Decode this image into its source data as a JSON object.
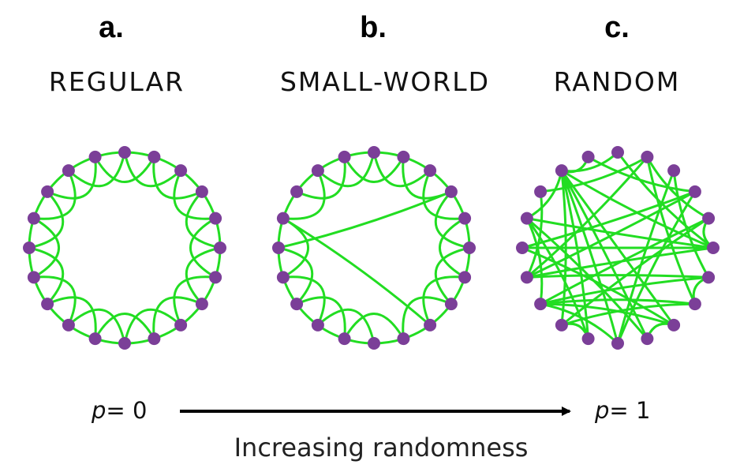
{
  "panels": [
    {
      "letter": "a.",
      "title": "REGULAR",
      "rewired_fraction": 0
    },
    {
      "letter": "b.",
      "title": "SMALL-WORLD",
      "rewired_fraction": 0.05
    },
    {
      "letter": "c.",
      "title": "RANDOM",
      "rewired_fraction": 1
    }
  ],
  "network": {
    "nodes": 20,
    "neighbors_each_side": 2
  },
  "colors": {
    "edge": "#22dd22",
    "node": "#7b3f98",
    "arrow": "#000000"
  },
  "axis": {
    "left_var": "p",
    "left_eq": "= 0",
    "right_var": "p",
    "right_eq": "= 1",
    "caption": "Increasing randomness"
  }
}
